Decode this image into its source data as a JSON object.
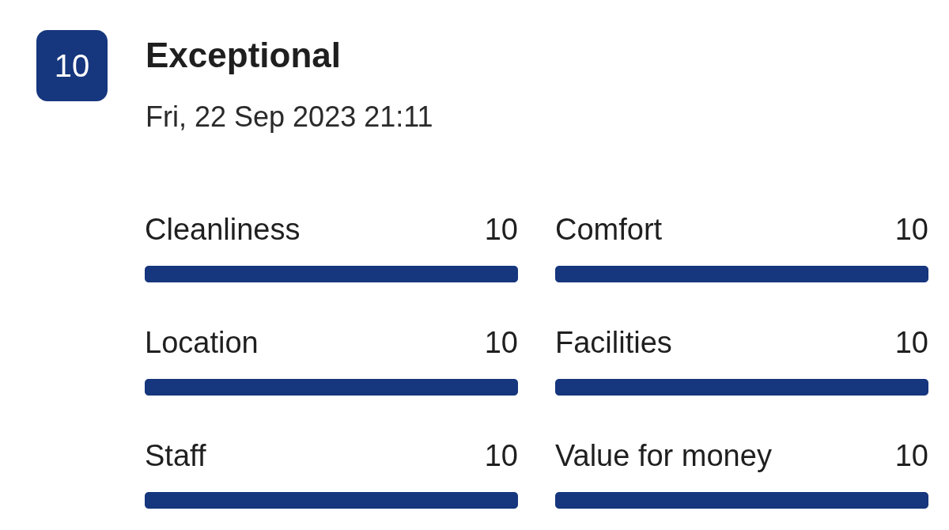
{
  "chart_data": [
    {
      "type": "bar",
      "orientation": "horizontal",
      "title": "Exceptional",
      "subtitle": "Fri, 22 Sep 2023 21:11",
      "annotations": [
        "10"
      ],
      "categories": [
        "Cleanliness",
        "Location",
        "Staff"
      ],
      "values": [
        10,
        10,
        10
      ],
      "color": "#16367d",
      "data_labels": true
    },
    {
      "type": "bar",
      "orientation": "horizontal",
      "categories": [
        "Comfort",
        "Facilities",
        "Value for money"
      ],
      "values": [
        10,
        10,
        10
      ],
      "color": "#16367d",
      "data_labels": true
    }
  ]
}
